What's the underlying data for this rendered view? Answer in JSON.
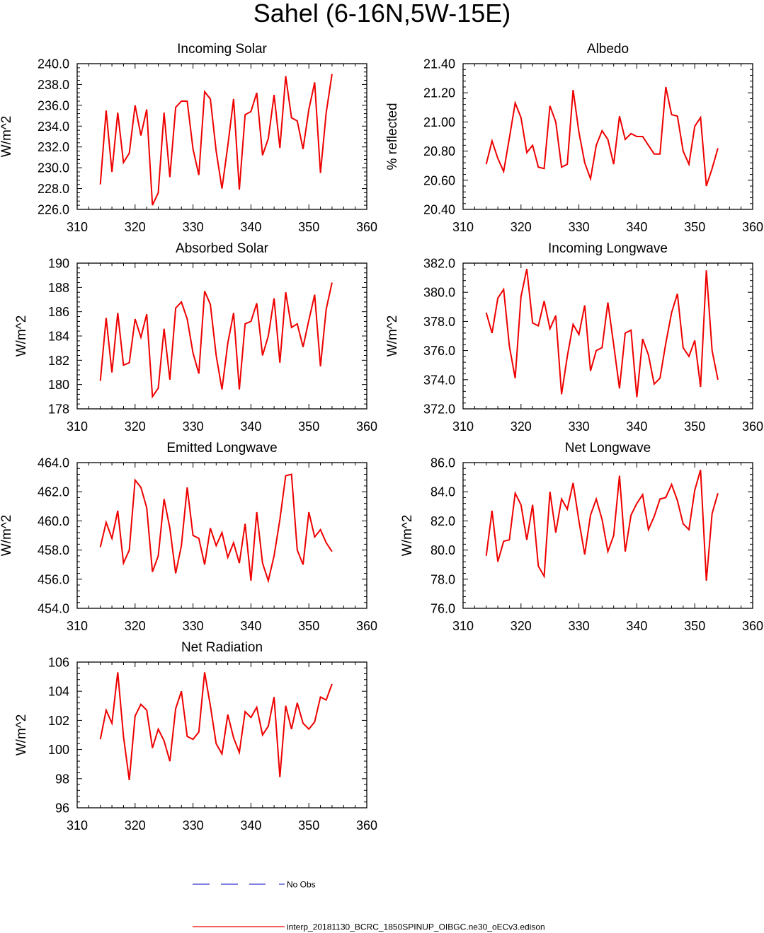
{
  "figure": {
    "title": "Sahel (6-16N,5W-15E)"
  },
  "legend": {
    "obs_label": "No Obs",
    "model_label": "interp_20181130_BCRC_1850SPINUP_OIBGC.ne30_oECv3.edison",
    "obs_color": "#3333cc",
    "model_color": "#ee0000"
  },
  "chart_data": [
    {
      "type": "line",
      "title": "Incoming Solar",
      "ylabel": "W/m^2",
      "xlim": [
        310,
        360
      ],
      "ylim": [
        226,
        240
      ],
      "xticks": [
        "310",
        "320",
        "330",
        "340",
        "350",
        "360"
      ],
      "yticks": [
        "226.0",
        "228.0",
        "230.0",
        "232.0",
        "234.0",
        "236.0",
        "238.0",
        "240.0"
      ],
      "x": [
        314,
        315,
        316,
        317,
        318,
        319,
        320,
        321,
        322,
        323,
        324,
        325,
        326,
        327,
        328,
        329,
        330,
        331,
        332,
        333,
        334,
        335,
        336,
        337,
        338,
        339,
        340,
        341,
        342,
        343,
        344,
        345,
        346,
        347,
        348,
        349,
        350,
        351,
        352,
        353,
        354
      ],
      "values": [
        228.4,
        235.5,
        229.6,
        235.3,
        230.5,
        231.4,
        236.0,
        233.1,
        235.6,
        226.4,
        227.6,
        235.3,
        229.1,
        235.8,
        236.4,
        236.4,
        231.8,
        229.3,
        237.3,
        236.6,
        231.6,
        228.0,
        232.1,
        236.6,
        227.9,
        235.1,
        235.4,
        237.2,
        231.2,
        232.8,
        237.0,
        231.9,
        238.8,
        234.8,
        234.5,
        231.8,
        235.6,
        238.2,
        229.5,
        235.3,
        239.0
      ]
    },
    {
      "type": "line",
      "title": "Albedo",
      "ylabel": "% reflected",
      "xlim": [
        310,
        360
      ],
      "ylim": [
        20.4,
        21.4
      ],
      "xticks": [
        "310",
        "320",
        "330",
        "340",
        "350",
        "360"
      ],
      "yticks": [
        "20.40",
        "20.60",
        "20.80",
        "21.00",
        "21.20",
        "21.40"
      ],
      "x": [
        314,
        315,
        316,
        317,
        318,
        319,
        320,
        321,
        322,
        323,
        324,
        325,
        326,
        327,
        328,
        329,
        330,
        331,
        332,
        333,
        334,
        335,
        336,
        337,
        338,
        339,
        340,
        341,
        342,
        343,
        344,
        345,
        346,
        347,
        348,
        349,
        350,
        351,
        352,
        353,
        354
      ],
      "values": [
        20.71,
        20.87,
        20.75,
        20.66,
        20.89,
        21.13,
        21.03,
        20.79,
        20.84,
        20.69,
        20.68,
        21.11,
        21.0,
        20.69,
        20.71,
        21.22,
        20.93,
        20.72,
        20.61,
        20.84,
        20.94,
        20.88,
        20.71,
        21.04,
        20.88,
        20.92,
        20.9,
        20.9,
        20.84,
        20.78,
        20.78,
        21.24,
        21.05,
        21.04,
        20.8,
        20.71,
        20.97,
        21.03,
        20.56,
        20.68,
        20.82
      ]
    },
    {
      "type": "line",
      "title": "Absorbed Solar",
      "ylabel": "W/m^2",
      "xlim": [
        310,
        360
      ],
      "ylim": [
        178,
        190
      ],
      "xticks": [
        "310",
        "320",
        "330",
        "340",
        "350",
        "360"
      ],
      "yticks": [
        "178",
        "180",
        "182",
        "184",
        "186",
        "188",
        "190"
      ],
      "x": [
        314,
        315,
        316,
        317,
        318,
        319,
        320,
        321,
        322,
        323,
        324,
        325,
        326,
        327,
        328,
        329,
        330,
        331,
        332,
        333,
        334,
        335,
        336,
        337,
        338,
        339,
        340,
        341,
        342,
        343,
        344,
        345,
        346,
        347,
        348,
        349,
        350,
        351,
        352,
        353,
        354
      ],
      "values": [
        180.3,
        185.5,
        181.0,
        185.9,
        181.6,
        181.8,
        185.4,
        183.9,
        185.8,
        179.0,
        179.7,
        184.6,
        180.4,
        186.3,
        186.8,
        185.4,
        182.6,
        180.9,
        187.7,
        186.6,
        182.4,
        179.6,
        183.4,
        185.9,
        179.6,
        185.0,
        185.2,
        186.7,
        182.4,
        184.0,
        187.1,
        181.8,
        187.6,
        184.7,
        185.0,
        183.1,
        185.3,
        187.4,
        181.5,
        186.2,
        188.4
      ]
    },
    {
      "type": "line",
      "title": "Incoming Longwave",
      "ylabel": "W/m^2",
      "xlim": [
        310,
        360
      ],
      "ylim": [
        372,
        382
      ],
      "xticks": [
        "310",
        "320",
        "330",
        "340",
        "350",
        "360"
      ],
      "yticks": [
        "372.0",
        "374.0",
        "376.0",
        "378.0",
        "380.0",
        "382.0"
      ],
      "x": [
        314,
        315,
        316,
        317,
        318,
        319,
        320,
        321,
        322,
        323,
        324,
        325,
        326,
        327,
        328,
        329,
        330,
        331,
        332,
        333,
        334,
        335,
        336,
        337,
        338,
        339,
        340,
        341,
        342,
        343,
        344,
        345,
        346,
        347,
        348,
        349,
        350,
        351,
        352,
        353,
        354
      ],
      "values": [
        378.6,
        377.2,
        379.6,
        380.2,
        376.3,
        374.1,
        379.7,
        381.6,
        377.9,
        377.7,
        379.4,
        377.5,
        378.4,
        373.0,
        375.6,
        377.8,
        377.1,
        379.1,
        374.6,
        376.0,
        376.2,
        379.3,
        376.4,
        373.4,
        377.2,
        377.4,
        372.8,
        376.8,
        375.7,
        373.7,
        374.1,
        376.5,
        378.6,
        379.9,
        376.2,
        375.6,
        376.7,
        373.5,
        381.5,
        376.0,
        374.0
      ]
    },
    {
      "type": "line",
      "title": "Emitted Longwave",
      "ylabel": "W/m^2",
      "xlim": [
        310,
        360
      ],
      "ylim": [
        454,
        464
      ],
      "xticks": [
        "310",
        "320",
        "330",
        "340",
        "350",
        "360"
      ],
      "yticks": [
        "454.0",
        "456.0",
        "458.0",
        "460.0",
        "462.0",
        "464.0"
      ],
      "x": [
        314,
        315,
        316,
        317,
        318,
        319,
        320,
        321,
        322,
        323,
        324,
        325,
        326,
        327,
        328,
        329,
        330,
        331,
        332,
        333,
        334,
        335,
        336,
        337,
        338,
        339,
        340,
        341,
        342,
        343,
        344,
        345,
        346,
        347,
        348,
        349,
        350,
        351,
        352,
        353,
        354
      ],
      "values": [
        458.2,
        459.9,
        458.8,
        460.7,
        457.1,
        458.0,
        462.8,
        462.3,
        460.9,
        456.5,
        457.6,
        461.5,
        459.5,
        456.4,
        458.3,
        462.3,
        459.0,
        458.8,
        457.0,
        459.5,
        458.3,
        459.2,
        457.5,
        458.5,
        457.1,
        459.8,
        455.9,
        460.6,
        457.1,
        455.9,
        457.6,
        460.1,
        463.1,
        463.2,
        458.0,
        457.0,
        460.6,
        458.9,
        459.4,
        458.5,
        457.9
      ]
    },
    {
      "type": "line",
      "title": "Net Longwave",
      "ylabel": "W/m^2",
      "xlim": [
        310,
        360
      ],
      "ylim": [
        76,
        86
      ],
      "xticks": [
        "310",
        "320",
        "330",
        "340",
        "350",
        "360"
      ],
      "yticks": [
        "76.0",
        "78.0",
        "80.0",
        "82.0",
        "84.0",
        "86.0"
      ],
      "x": [
        314,
        315,
        316,
        317,
        318,
        319,
        320,
        321,
        322,
        323,
        324,
        325,
        326,
        327,
        328,
        329,
        330,
        331,
        332,
        333,
        334,
        335,
        336,
        337,
        338,
        339,
        340,
        341,
        342,
        343,
        344,
        345,
        346,
        347,
        348,
        349,
        350,
        351,
        352,
        353,
        354
      ],
      "values": [
        79.6,
        82.7,
        79.2,
        80.6,
        80.7,
        83.9,
        83.1,
        80.7,
        83.1,
        78.9,
        78.2,
        84.0,
        81.2,
        83.5,
        82.8,
        84.6,
        82.0,
        79.7,
        82.4,
        83.5,
        82.1,
        79.9,
        81.0,
        85.1,
        79.9,
        82.4,
        83.2,
        83.8,
        81.4,
        82.3,
        83.5,
        83.6,
        84.5,
        83.4,
        81.8,
        81.4,
        84.1,
        85.5,
        77.9,
        82.5,
        83.9
      ]
    },
    {
      "type": "line",
      "title": "Net Radiation",
      "ylabel": "W/m^2",
      "xlim": [
        310,
        360
      ],
      "ylim": [
        96,
        106
      ],
      "xticks": [
        "310",
        "320",
        "330",
        "340",
        "350",
        "360"
      ],
      "yticks": [
        "96",
        "98",
        "100",
        "102",
        "104",
        "106"
      ],
      "x": [
        314,
        315,
        316,
        317,
        318,
        319,
        320,
        321,
        322,
        323,
        324,
        325,
        326,
        327,
        328,
        329,
        330,
        331,
        332,
        333,
        334,
        335,
        336,
        337,
        338,
        339,
        340,
        341,
        342,
        343,
        344,
        345,
        346,
        347,
        348,
        349,
        350,
        351,
        352,
        353,
        354
      ],
      "values": [
        100.7,
        102.7,
        101.8,
        105.3,
        100.9,
        97.9,
        102.3,
        103.1,
        102.7,
        100.1,
        101.4,
        100.6,
        99.2,
        102.8,
        104.0,
        100.9,
        100.7,
        101.2,
        105.3,
        103.0,
        100.4,
        99.7,
        102.4,
        100.8,
        99.8,
        102.6,
        102.2,
        102.9,
        101.0,
        101.6,
        103.6,
        98.1,
        103.0,
        101.4,
        103.2,
        101.8,
        101.4,
        101.9,
        103.6,
        103.4,
        104.5
      ]
    }
  ]
}
